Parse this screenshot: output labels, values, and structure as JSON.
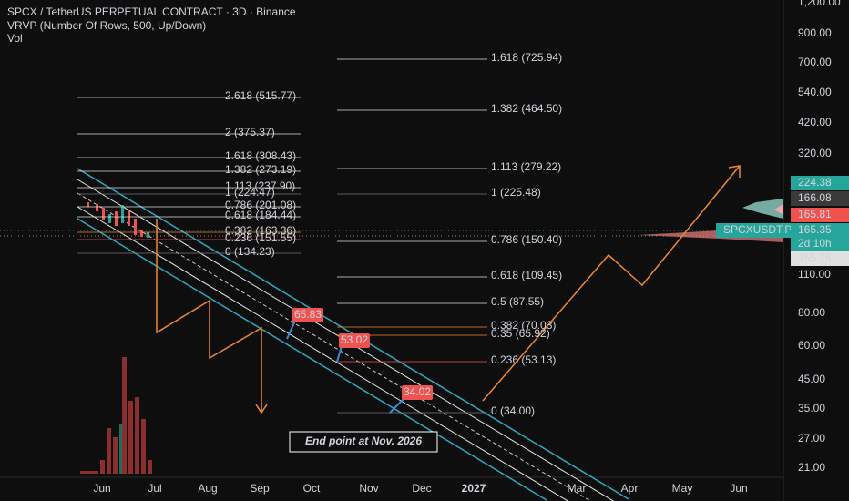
{
  "header": {
    "symbol": "SPCX / TetherUS PERPETUAL CONTRACT · 3D · Binance",
    "indicator": "VRVP (Number Of Rows, 500, Up/Down)",
    "volume": "Vol"
  },
  "price_axis": [
    "1,200.00",
    "900.00",
    "700.00",
    "540.00",
    "420.00",
    "320.00",
    "110.00",
    "80.00",
    "60.00",
    "45.00",
    "35.00",
    "27.00",
    "21.00"
  ],
  "price_badges": {
    "high": "224.38",
    "mid": "166.08",
    "low": "165.81",
    "ticker": "SPCXUSDT.P",
    "last": "165.35",
    "countdown": "2d 10h",
    "prev": "155.75"
  },
  "time_axis": [
    "Jun",
    "Jul",
    "Aug",
    "Sep",
    "Oct",
    "Nov",
    "Dec",
    "2027",
    "Mar",
    "Apr",
    "May",
    "Jun"
  ],
  "fib_left": [
    "2.618 (515.77)",
    "2 (375.37)",
    "1.618 (308.43)",
    "1.382 (273.19)",
    "1.113 (237.90)",
    "1 (224.47)",
    "0.786 (201.08)",
    "0.618 (184.44)",
    "0.382 (163.36)",
    "0.236 (151.55)",
    "0 (134.23)"
  ],
  "fib_right": [
    "1.618 (725.94)",
    "1.382 (464.50)",
    "1.113 (279.22)",
    "1 (225.48)",
    "0.786 (150.40)",
    "0.618 (109.45)",
    "0.5 (87.55)",
    "0.382 (70.03)",
    "0.35 (65.92)",
    "0.236 (53.13)",
    "0 (34.00)"
  ],
  "callouts": [
    "65.83",
    "53.02",
    "34.02"
  ],
  "note": "End point at Nov. 2026"
}
